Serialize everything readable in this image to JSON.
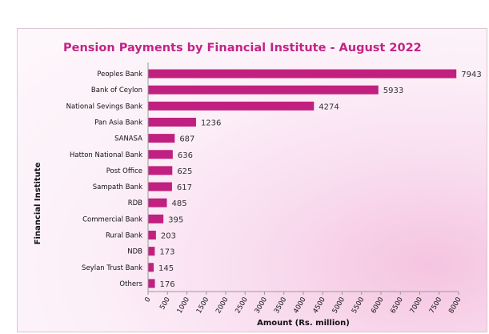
{
  "chart_data": {
    "type": "bar",
    "orientation": "horizontal",
    "title": "Pension Payments by Financial  Institute - August 2022",
    "xlabel": "Amount (Rs. million)",
    "ylabel": "Financial  Institute",
    "categories": [
      "Peoples Bank",
      "Bank of Ceylon",
      "National Sevings Bank",
      "Pan Asia Bank",
      "SANASA",
      "Hatton National Bank",
      "Post Office",
      "Sampath Bank",
      "RDB",
      "Commercial Bank",
      "Rural Bank",
      "NDB",
      "Seylan Trust Bank",
      "Others"
    ],
    "values": [
      7943,
      5933,
      4274,
      1236,
      687,
      636,
      625,
      617,
      485,
      395,
      203,
      173,
      145,
      176
    ],
    "data_labels": [
      "7943",
      "5933",
      "4274",
      "1236",
      "687",
      "636",
      "625",
      "617",
      "485",
      "395",
      "203",
      "173",
      "145",
      "176"
    ],
    "xlim": [
      0,
      8000
    ],
    "xticks": [
      "0",
      "500",
      "1000",
      "1500",
      "2000",
      "2500",
      "3000",
      "3500",
      "4000",
      "4500",
      "5000",
      "5500",
      "6000",
      "6500",
      "7000",
      "7500",
      "8000"
    ],
    "grid": false,
    "legend": "none",
    "bar_color": "#c0207f",
    "title_color": "#c02585"
  }
}
